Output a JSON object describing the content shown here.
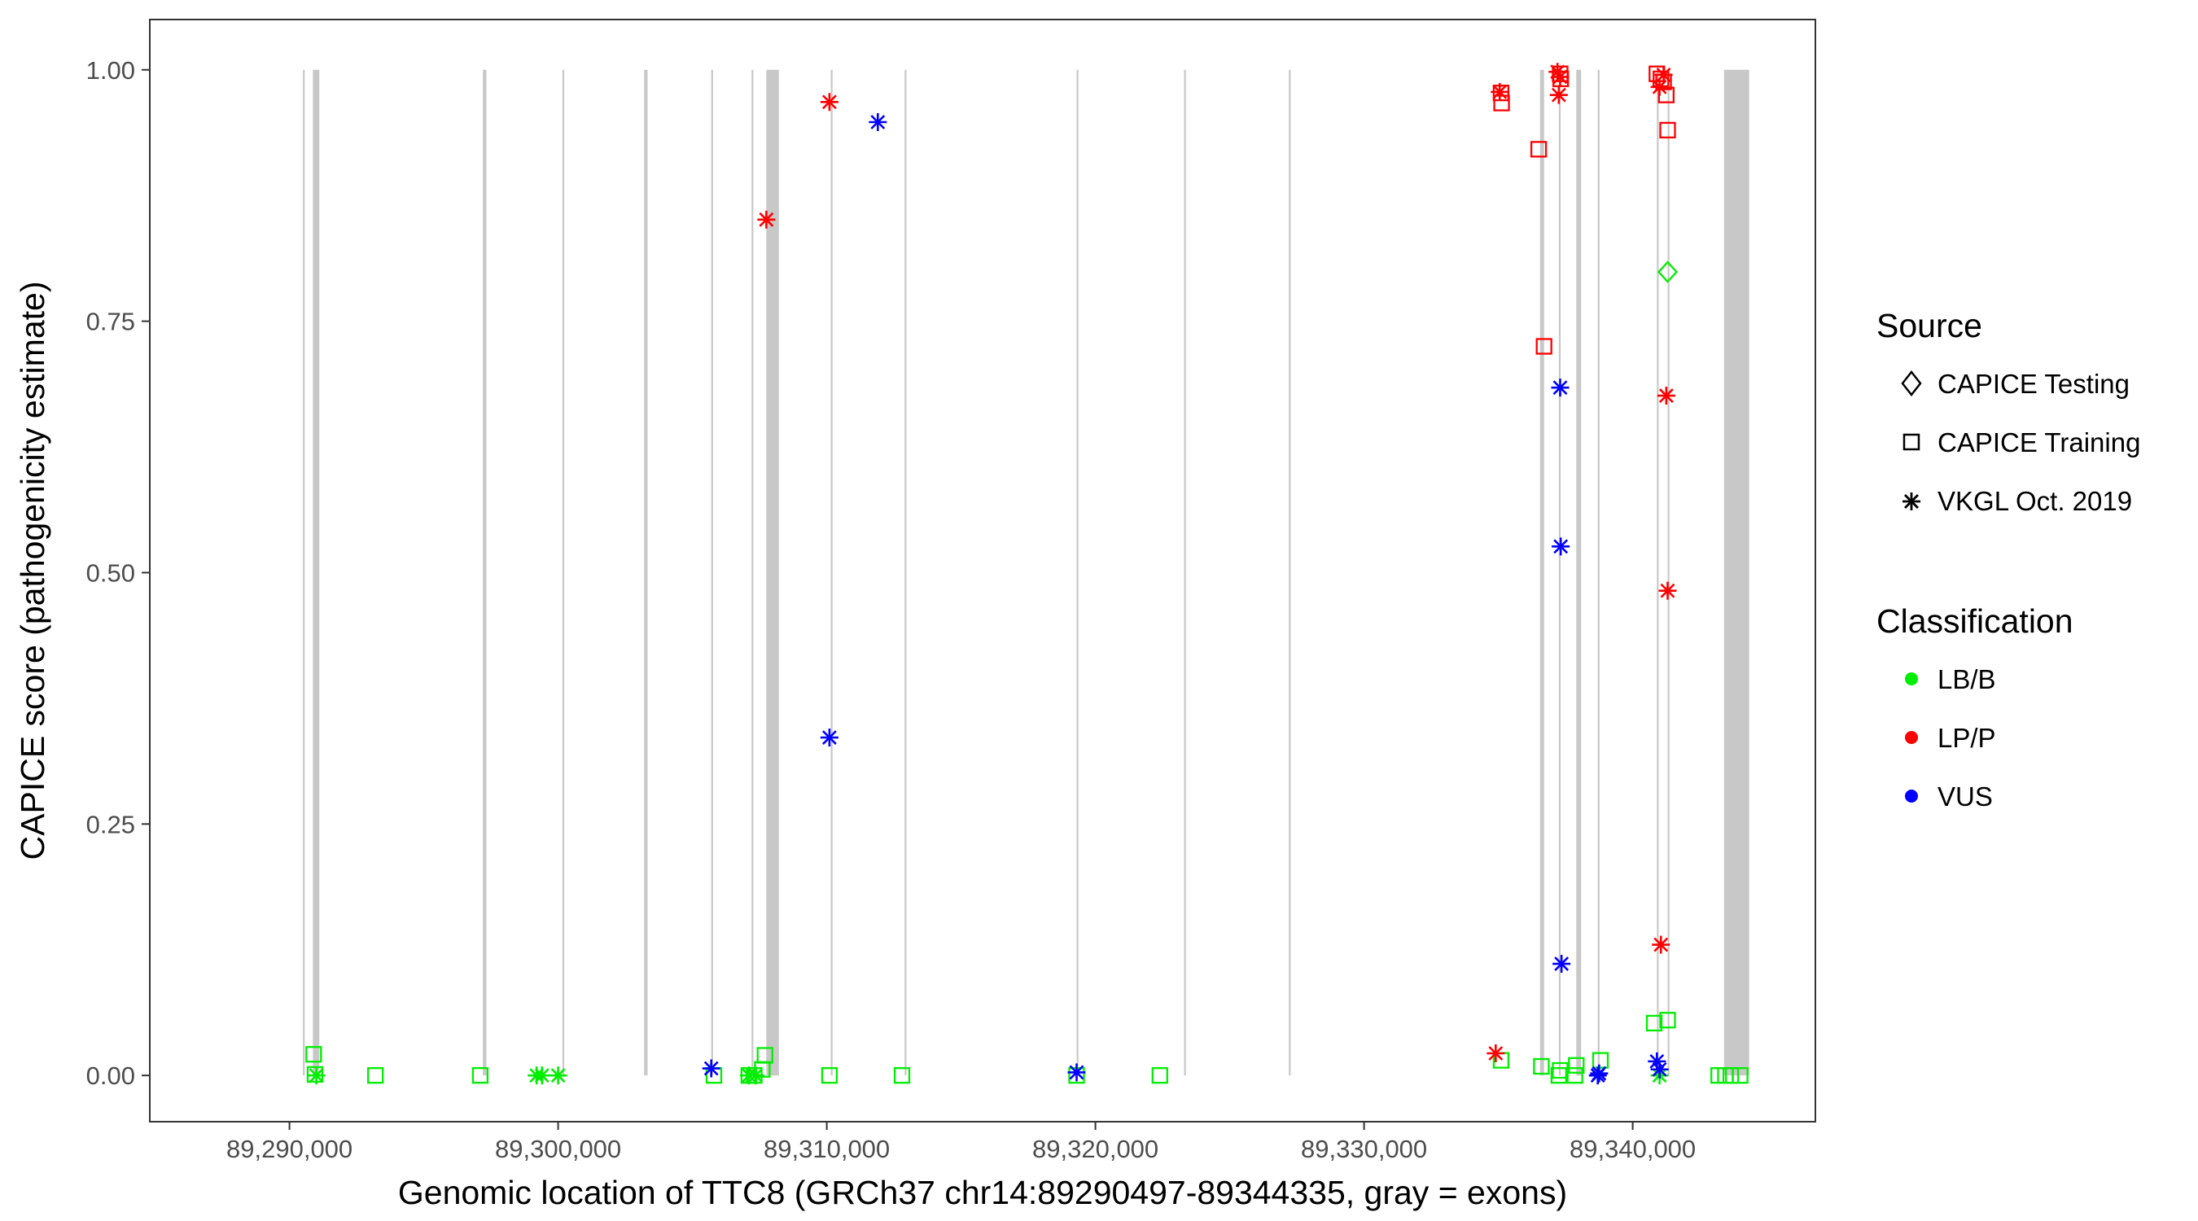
{
  "chart_data": {
    "type": "scatter",
    "title": "",
    "xlabel": "Genomic location of TTC8 (GRCh37 chr14:89290497-89344335, gray = exons)",
    "ylabel": "CAPICE score (pathogenicity estimate)",
    "xlim": [
      89284800,
      89346800
    ],
    "ylim": [
      -0.046,
      1.05
    ],
    "x_ticks": [
      89290000,
      89300000,
      89310000,
      89320000,
      89330000,
      89340000
    ],
    "x_tick_labels": [
      "89,290,000",
      "89,300,000",
      "89,310,000",
      "89,320,000",
      "89,330,000",
      "89,340,000"
    ],
    "y_ticks": [
      0,
      0.25,
      0.5,
      0.75,
      1.0
    ],
    "y_tick_labels": [
      "0.00",
      "0.25",
      "0.50",
      "0.75",
      "1.00"
    ],
    "grid": false,
    "legend_position": "right",
    "exons": [
      [
        89290500,
        89290520
      ],
      [
        89290870,
        89291110
      ],
      [
        89297200,
        89297330
      ],
      [
        89300160,
        89300200
      ],
      [
        89303200,
        89303330
      ],
      [
        89305700,
        89305740
      ],
      [
        89307200,
        89307260
      ],
      [
        89307750,
        89308220
      ],
      [
        89310150,
        89310200
      ],
      [
        89312900,
        89312960
      ],
      [
        89319300,
        89319360
      ],
      [
        89323300,
        89323340
      ],
      [
        89327200,
        89327240
      ],
      [
        89336550,
        89336700
      ],
      [
        89337250,
        89337300
      ],
      [
        89337900,
        89338080
      ],
      [
        89338700,
        89338760
      ],
      [
        89340900,
        89340950
      ],
      [
        89341300,
        89341350
      ],
      [
        89343400,
        89344335
      ]
    ],
    "legend_source": {
      "title": "Source",
      "items": [
        {
          "label": "CAPICE Testing",
          "shape": "diamond"
        },
        {
          "label": "CAPICE Training",
          "shape": "square"
        },
        {
          "label": "VKGL Oct. 2019",
          "shape": "asterisk"
        }
      ]
    },
    "legend_classification": {
      "title": "Classification",
      "items": [
        {
          "label": "LB/B",
          "color": "#00ee00"
        },
        {
          "label": "LP/P",
          "color": "#ff0000"
        },
        {
          "label": "VUS",
          "color": "#0000ff"
        }
      ]
    },
    "series": [
      {
        "name": "CAPICE Training",
        "shape": "square",
        "classification": "LB/B",
        "color": "#00ee00",
        "points": [
          [
            89290900,
            0.021
          ],
          [
            89290950,
            0.001
          ],
          [
            89293200,
            0.0
          ],
          [
            89297100,
            0.0
          ],
          [
            89305800,
            0.0
          ],
          [
            89307100,
            0.0
          ],
          [
            89307300,
            0.0
          ],
          [
            89307600,
            0.006
          ],
          [
            89307700,
            0.02
          ],
          [
            89310100,
            0.0
          ],
          [
            89312800,
            0.0
          ],
          [
            89319300,
            0.0
          ],
          [
            89322400,
            0.0
          ],
          [
            89335100,
            0.015
          ],
          [
            89336600,
            0.009
          ],
          [
            89337250,
            0.0
          ],
          [
            89337300,
            0.005
          ],
          [
            89337850,
            0.0
          ],
          [
            89337900,
            0.01
          ],
          [
            89338800,
            0.015
          ],
          [
            89340800,
            0.052
          ],
          [
            89341300,
            0.055
          ],
          [
            89343200,
            0.0
          ],
          [
            89343450,
            0.0
          ],
          [
            89343650,
            0.0
          ],
          [
            89344000,
            0.0
          ]
        ]
      },
      {
        "name": "VKGL Oct. 2019",
        "shape": "asterisk",
        "classification": "LB/B",
        "color": "#00ee00",
        "points": [
          [
            89291000,
            0.0
          ],
          [
            89299200,
            0.0
          ],
          [
            89299400,
            0.0
          ],
          [
            89300000,
            0.0
          ],
          [
            89307100,
            0.0
          ],
          [
            89307350,
            0.0
          ],
          [
            89341000,
            0.0
          ]
        ]
      },
      {
        "name": "CAPICE Training",
        "shape": "square",
        "classification": "LP/P",
        "color": "#ff0000",
        "points": [
          [
            89335100,
            0.977
          ],
          [
            89335120,
            0.967
          ],
          [
            89336500,
            0.921
          ],
          [
            89336700,
            0.725
          ],
          [
            89337300,
            0.996
          ],
          [
            89337320,
            0.991
          ],
          [
            89340900,
            0.996
          ],
          [
            89341050,
            0.991
          ],
          [
            89341150,
            0.988
          ],
          [
            89341250,
            0.975
          ],
          [
            89341300,
            0.94
          ]
        ]
      },
      {
        "name": "VKGL Oct. 2019",
        "shape": "asterisk",
        "classification": "LP/P",
        "color": "#ff0000",
        "points": [
          [
            89307750,
            0.851
          ],
          [
            89310100,
            0.968
          ],
          [
            89334900,
            0.022
          ],
          [
            89335050,
            0.978
          ],
          [
            89337200,
            0.998
          ],
          [
            89337300,
            0.993
          ],
          [
            89337250,
            0.975
          ],
          [
            89341000,
            0.983
          ],
          [
            89341050,
            0.13
          ],
          [
            89341150,
            0.995
          ],
          [
            89341250,
            0.676
          ],
          [
            89341300,
            0.482
          ]
        ]
      },
      {
        "name": "CAPICE Testing",
        "shape": "diamond",
        "classification": "LB/B",
        "color": "#00ee00",
        "points": [
          [
            89341300,
            0.799
          ]
        ]
      },
      {
        "name": "VKGL Oct. 2019",
        "shape": "asterisk",
        "classification": "VUS",
        "color": "#0000ff",
        "points": [
          [
            89305700,
            0.007
          ],
          [
            89310100,
            0.336
          ],
          [
            89311900,
            0.948
          ],
          [
            89319300,
            0.003
          ],
          [
            89337300,
            0.684
          ],
          [
            89337320,
            0.526
          ],
          [
            89337350,
            0.111
          ],
          [
            89338700,
            0.0
          ],
          [
            89338750,
            0.002
          ],
          [
            89340900,
            0.014
          ],
          [
            89341000,
            0.006
          ]
        ]
      }
    ]
  }
}
